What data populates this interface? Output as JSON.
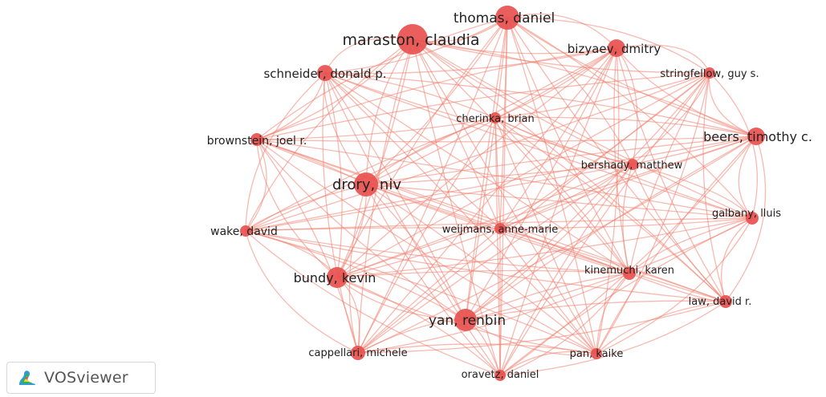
{
  "app": {
    "logo_text": "VOSviewer"
  },
  "network": {
    "colors": {
      "node": "#e8514f",
      "edge": "#f08070",
      "label": "#222222"
    },
    "nodes": [
      {
        "id": "thomas",
        "label": "thomas, daniel"
      },
      {
        "id": "maraston",
        "label": "maraston, claudia"
      },
      {
        "id": "bizyaev",
        "label": "bizyaev, dmitry"
      },
      {
        "id": "schneider",
        "label": "schneider, donald p."
      },
      {
        "id": "stringfellow",
        "label": "stringfellow, guy s."
      },
      {
        "id": "cherinka",
        "label": "cherinka, brian"
      },
      {
        "id": "brownstein",
        "label": "brownstein, joel r."
      },
      {
        "id": "beers",
        "label": "beers, timothy c."
      },
      {
        "id": "bershady",
        "label": "bershady, matthew"
      },
      {
        "id": "drory",
        "label": "drory, niv"
      },
      {
        "id": "galbany",
        "label": "galbany, lluis"
      },
      {
        "id": "wake",
        "label": "wake, david"
      },
      {
        "id": "weijmans",
        "label": "weijmans, anne-marie"
      },
      {
        "id": "kinemuchi",
        "label": "kinemuchi, karen"
      },
      {
        "id": "bundy",
        "label": "bundy, kevin"
      },
      {
        "id": "law",
        "label": "law, david r."
      },
      {
        "id": "yan",
        "label": "yan, renbin"
      },
      {
        "id": "cappellari",
        "label": "cappellari, michele"
      },
      {
        "id": "pan",
        "label": "pan, kaike"
      },
      {
        "id": "oravetz",
        "label": "oravetz, daniel"
      }
    ]
  }
}
